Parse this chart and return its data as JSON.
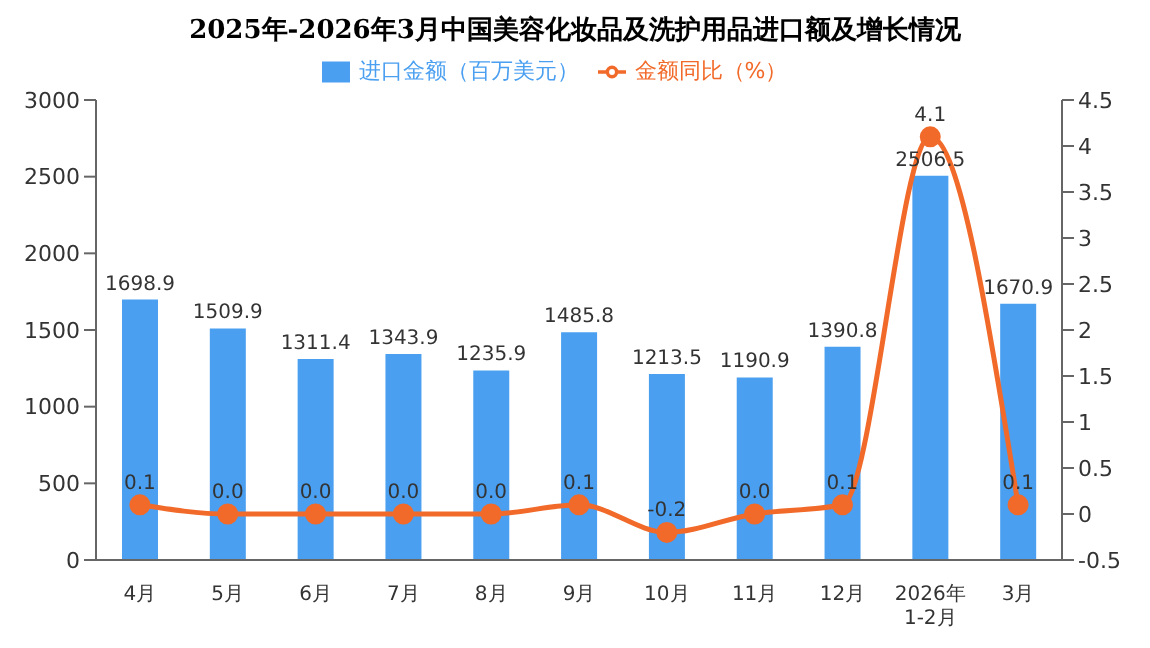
{
  "chart_data": {
    "type": "bar",
    "title": "2025年-2026年3月中国美容化妆品及洗护用品进口额及增长情况",
    "categories": [
      "4月",
      "5月",
      "6月",
      "7月",
      "8月",
      "9月",
      "10月",
      "11月",
      "12月",
      "2026年\n1-2月",
      "3月"
    ],
    "series": [
      {
        "name": "进口金额（百万美元）",
        "color": "#4a9ff0",
        "values": [
          1698.9,
          1509.9,
          1311.4,
          1343.9,
          1235.9,
          1485.8,
          1213.5,
          1190.9,
          1390.8,
          2506.5,
          1670.9
        ]
      },
      {
        "name": "金额同比（%）",
        "type": "line",
        "axis": "y2",
        "color": "#f26a2a",
        "marker": "circle",
        "values": [
          0.1,
          0.0,
          0.0,
          0.0,
          0.0,
          0.1,
          -0.2,
          0.0,
          0.1,
          4.1,
          0.1
        ],
        "value_labels": [
          "0.1",
          "0.0",
          "0.0",
          "0.0",
          "0.0",
          "0.1",
          "-0.2",
          "0.0",
          "0.1",
          "4.1",
          "0.1"
        ]
      }
    ],
    "ylim": [
      0,
      3000
    ],
    "yticks": [
      0,
      500,
      1000,
      1500,
      2000,
      2500,
      3000
    ],
    "y2lim": [
      -0.5,
      4.5
    ],
    "y2ticks": [
      {
        "value": -0.5,
        "label": "-0.5"
      },
      0,
      0.5,
      1,
      1.5,
      2,
      2.5,
      3,
      3.5,
      4,
      4.5
    ],
    "data_labels": true,
    "legend": "top",
    "grid": false
  }
}
